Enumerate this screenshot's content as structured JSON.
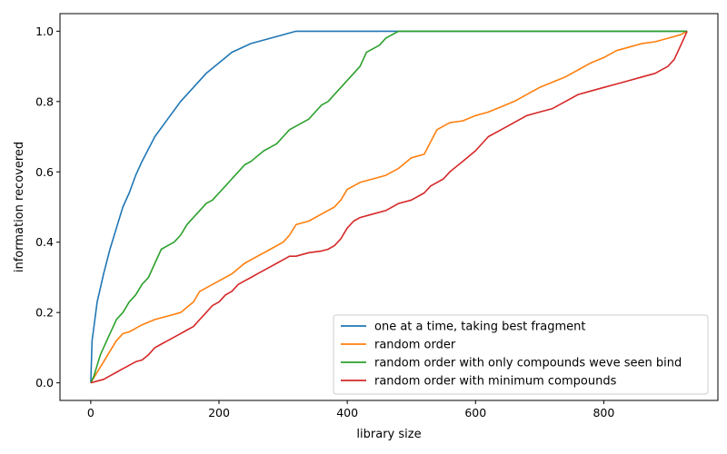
{
  "chart_data": {
    "type": "line",
    "xlabel": "library size",
    "ylabel": "information recovered",
    "xlim": [
      -48,
      978
    ],
    "ylim": [
      -0.05,
      1.05
    ],
    "xticks": [
      0,
      200,
      400,
      600,
      800
    ],
    "xtick_labels": [
      "0",
      "200",
      "400",
      "600",
      "800"
    ],
    "yticks": [
      0.0,
      0.2,
      0.4,
      0.6,
      0.8,
      1.0
    ],
    "ytick_labels": [
      "0.0",
      "0.2",
      "0.4",
      "0.6",
      "0.8",
      "1.0"
    ],
    "grid": false,
    "legend_position": "bottom-right",
    "series": [
      {
        "name": "one at a time, taking best fragment",
        "color": "#1f77b4",
        "x": [
          0,
          2,
          5,
          10,
          15,
          20,
          30,
          40,
          50,
          60,
          70,
          80,
          100,
          120,
          140,
          160,
          180,
          200,
          220,
          250,
          280,
          320,
          930
        ],
        "y": [
          0.0,
          0.12,
          0.16,
          0.23,
          0.27,
          0.31,
          0.38,
          0.44,
          0.5,
          0.54,
          0.59,
          0.63,
          0.7,
          0.75,
          0.8,
          0.84,
          0.88,
          0.91,
          0.94,
          0.965,
          0.98,
          1.0,
          1.0
        ]
      },
      {
        "name": "random order",
        "color": "#ff7f0e",
        "x": [
          0,
          10,
          20,
          30,
          40,
          50,
          60,
          70,
          80,
          100,
          120,
          140,
          160,
          170,
          180,
          200,
          220,
          240,
          260,
          280,
          300,
          310,
          320,
          340,
          360,
          380,
          390,
          400,
          420,
          440,
          460,
          480,
          500,
          520,
          540,
          560,
          580,
          600,
          620,
          640,
          660,
          680,
          700,
          720,
          740,
          760,
          780,
          800,
          820,
          840,
          860,
          880,
          900,
          920,
          930
        ],
        "y": [
          0.0,
          0.03,
          0.06,
          0.09,
          0.12,
          0.14,
          0.145,
          0.155,
          0.165,
          0.18,
          0.19,
          0.2,
          0.23,
          0.26,
          0.27,
          0.29,
          0.31,
          0.34,
          0.36,
          0.38,
          0.4,
          0.42,
          0.45,
          0.46,
          0.48,
          0.5,
          0.52,
          0.55,
          0.57,
          0.58,
          0.59,
          0.61,
          0.64,
          0.65,
          0.72,
          0.74,
          0.745,
          0.76,
          0.77,
          0.785,
          0.8,
          0.82,
          0.84,
          0.855,
          0.87,
          0.89,
          0.91,
          0.925,
          0.945,
          0.955,
          0.965,
          0.97,
          0.98,
          0.99,
          1.0
        ]
      },
      {
        "name": "random order with only compounds weve seen bind",
        "color": "#2ca02c",
        "x": [
          0,
          5,
          10,
          15,
          20,
          25,
          30,
          35,
          40,
          50,
          60,
          70,
          80,
          90,
          100,
          110,
          120,
          130,
          140,
          150,
          160,
          170,
          180,
          190,
          200,
          210,
          220,
          230,
          240,
          250,
          260,
          270,
          280,
          290,
          300,
          310,
          320,
          330,
          340,
          350,
          360,
          370,
          380,
          390,
          400,
          410,
          420,
          430,
          440,
          450,
          460,
          470,
          480,
          490,
          930
        ],
        "y": [
          0.0,
          0.02,
          0.05,
          0.08,
          0.1,
          0.12,
          0.14,
          0.16,
          0.18,
          0.2,
          0.23,
          0.25,
          0.28,
          0.3,
          0.34,
          0.38,
          0.39,
          0.4,
          0.42,
          0.45,
          0.47,
          0.49,
          0.51,
          0.52,
          0.54,
          0.56,
          0.58,
          0.6,
          0.62,
          0.63,
          0.645,
          0.66,
          0.67,
          0.68,
          0.7,
          0.72,
          0.73,
          0.74,
          0.75,
          0.77,
          0.79,
          0.8,
          0.82,
          0.84,
          0.86,
          0.88,
          0.9,
          0.94,
          0.95,
          0.96,
          0.98,
          0.99,
          1.0,
          1.0,
          1.0
        ]
      },
      {
        "name": "random order with minimum compounds",
        "color": "#d62728",
        "x": [
          0,
          10,
          20,
          30,
          40,
          50,
          60,
          70,
          80,
          90,
          100,
          110,
          120,
          130,
          140,
          150,
          160,
          170,
          180,
          190,
          200,
          210,
          220,
          230,
          240,
          250,
          260,
          270,
          280,
          290,
          300,
          310,
          320,
          340,
          360,
          370,
          380,
          390,
          400,
          410,
          420,
          440,
          460,
          480,
          500,
          520,
          530,
          540,
          550,
          560,
          580,
          600,
          620,
          640,
          660,
          680,
          700,
          720,
          740,
          760,
          780,
          800,
          820,
          840,
          860,
          880,
          900,
          910,
          920,
          930
        ],
        "y": [
          0.0,
          0.005,
          0.01,
          0.02,
          0.03,
          0.04,
          0.05,
          0.06,
          0.065,
          0.08,
          0.1,
          0.11,
          0.12,
          0.13,
          0.14,
          0.15,
          0.16,
          0.18,
          0.2,
          0.22,
          0.23,
          0.25,
          0.26,
          0.28,
          0.29,
          0.3,
          0.31,
          0.32,
          0.33,
          0.34,
          0.35,
          0.36,
          0.36,
          0.37,
          0.375,
          0.38,
          0.39,
          0.41,
          0.44,
          0.46,
          0.47,
          0.48,
          0.49,
          0.51,
          0.52,
          0.54,
          0.56,
          0.57,
          0.58,
          0.6,
          0.63,
          0.66,
          0.7,
          0.72,
          0.74,
          0.76,
          0.77,
          0.78,
          0.8,
          0.82,
          0.83,
          0.84,
          0.85,
          0.86,
          0.87,
          0.88,
          0.9,
          0.92,
          0.96,
          1.0
        ]
      }
    ]
  }
}
